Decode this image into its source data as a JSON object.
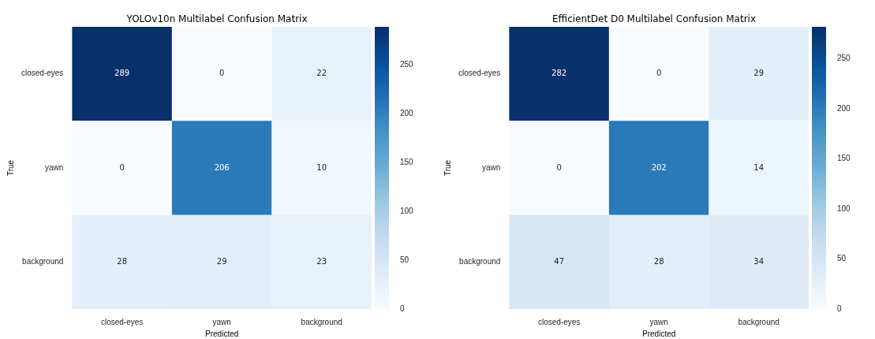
{
  "chart_data": [
    {
      "type": "heatmap",
      "title": "YOLOv10n Multilabel Confusion Matrix",
      "xlabel": "Predicted",
      "ylabel": "True",
      "categories": [
        "closed-eyes",
        "yawn",
        "background"
      ],
      "y_categories": [
        "closed-eyes",
        "yawn",
        "background"
      ],
      "cells": [
        [
          289,
          0,
          22
        ],
        [
          0,
          206,
          10
        ],
        [
          28,
          29,
          23
        ]
      ],
      "clim": [
        0,
        289
      ],
      "cticks": [
        0,
        50,
        100,
        150,
        200,
        250
      ],
      "data_labels": true
    },
    {
      "type": "heatmap",
      "title": "EfficientDet D0 Multilabel Confusion Matrix",
      "xlabel": "Predicted",
      "ylabel": "True",
      "categories": [
        "closed-eyes",
        "yawn",
        "background"
      ],
      "y_categories": [
        "closed-eyes",
        "yawn",
        "background"
      ],
      "cells": [
        [
          282,
          0,
          29
        ],
        [
          0,
          202,
          14
        ],
        [
          47,
          28,
          34
        ]
      ],
      "clim": [
        0,
        282
      ],
      "cticks": [
        0,
        50,
        100,
        150,
        200,
        250
      ],
      "data_labels": true
    }
  ]
}
